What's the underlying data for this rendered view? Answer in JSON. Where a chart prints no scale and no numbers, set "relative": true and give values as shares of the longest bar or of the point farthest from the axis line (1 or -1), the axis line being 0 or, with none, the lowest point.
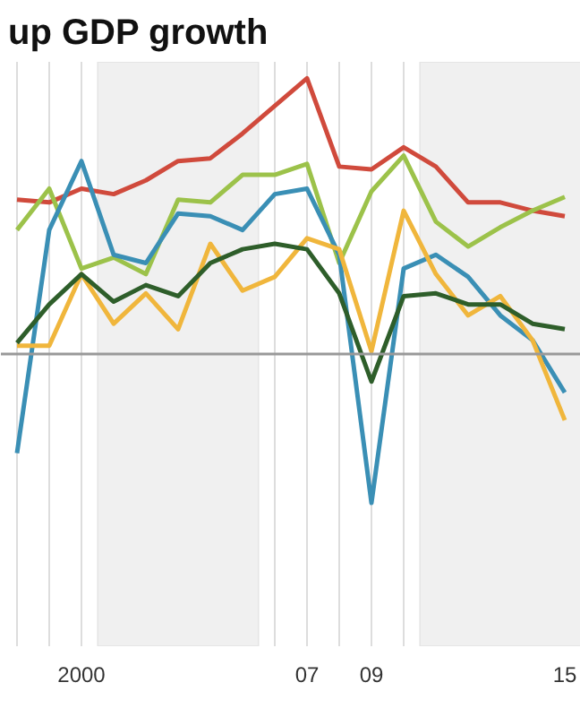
{
  "chart_data": {
    "type": "line",
    "title": "up GDP growth",
    "relative": true,
    "x": [
      1998,
      1999,
      2000,
      2001,
      2002,
      2003,
      2004,
      2005,
      2006,
      2007,
      2008,
      2009,
      2010,
      2011,
      2012,
      2013,
      2014,
      2015
    ],
    "xlim": [
      1997.5,
      2015.5
    ],
    "xticks": [
      {
        "value": 1998,
        "label": null
      },
      {
        "value": 1999,
        "label": null
      },
      {
        "value": 2000,
        "label": "2000"
      },
      {
        "value": 2001,
        "label": null
      },
      {
        "value": 2002,
        "label": null
      },
      {
        "value": 2003,
        "label": null
      },
      {
        "value": 2004,
        "label": null
      },
      {
        "value": 2005,
        "label": null
      },
      {
        "value": 2006,
        "label": null
      },
      {
        "value": 2007,
        "label": "07"
      },
      {
        "value": 2008,
        "label": null
      },
      {
        "value": 2009,
        "label": "09"
      },
      {
        "value": 2010,
        "label": null
      },
      {
        "value": 2011,
        "label": null
      },
      {
        "value": 2012,
        "label": null
      },
      {
        "value": 2013,
        "label": null
      },
      {
        "value": 2014,
        "label": null
      },
      {
        "value": 2015,
        "label": "15"
      }
    ],
    "grid": "x",
    "line_style": "solid",
    "bands": [
      {
        "axis": "x",
        "from": 2000.5,
        "to": 2005.5,
        "color": "#f0f0f0"
      },
      {
        "axis": "x",
        "from": 2010.5,
        "to": 2015.5,
        "color": "#f0f0f0"
      }
    ],
    "series": [
      {
        "color": "#d04a3c",
        "values": [
          0.56,
          0.55,
          0.6,
          0.58,
          0.63,
          0.7,
          0.71,
          0.8,
          0.9,
          1.0,
          0.68,
          0.67,
          0.75,
          0.68,
          0.55,
          0.55,
          0.52,
          0.5
        ]
      },
      {
        "color": "#9cc24a",
        "values": [
          0.45,
          0.6,
          0.31,
          0.35,
          0.29,
          0.56,
          0.55,
          0.65,
          0.65,
          0.69,
          0.33,
          0.59,
          0.72,
          0.48,
          0.39,
          0.46,
          0.52,
          0.57
        ]
      },
      {
        "color": "#3a8fb5",
        "values": [
          -0.36,
          0.45,
          0.7,
          0.36,
          0.33,
          0.51,
          0.5,
          0.45,
          0.58,
          0.6,
          0.36,
          -0.54,
          0.31,
          0.36,
          0.28,
          0.14,
          0.05,
          -0.14
        ]
      },
      {
        "color": "#f0b63c",
        "values": [
          0.03,
          0.03,
          0.29,
          0.11,
          0.22,
          0.09,
          0.4,
          0.23,
          0.28,
          0.42,
          0.38,
          0.01,
          0.52,
          0.29,
          0.14,
          0.21,
          0.05,
          -0.24
        ]
      },
      {
        "color": "#2e5e2a",
        "values": [
          0.04,
          0.18,
          0.29,
          0.19,
          0.25,
          0.21,
          0.33,
          0.38,
          0.4,
          0.38,
          0.22,
          -0.1,
          0.21,
          0.22,
          0.18,
          0.18,
          0.11,
          0.09
        ]
      }
    ]
  }
}
